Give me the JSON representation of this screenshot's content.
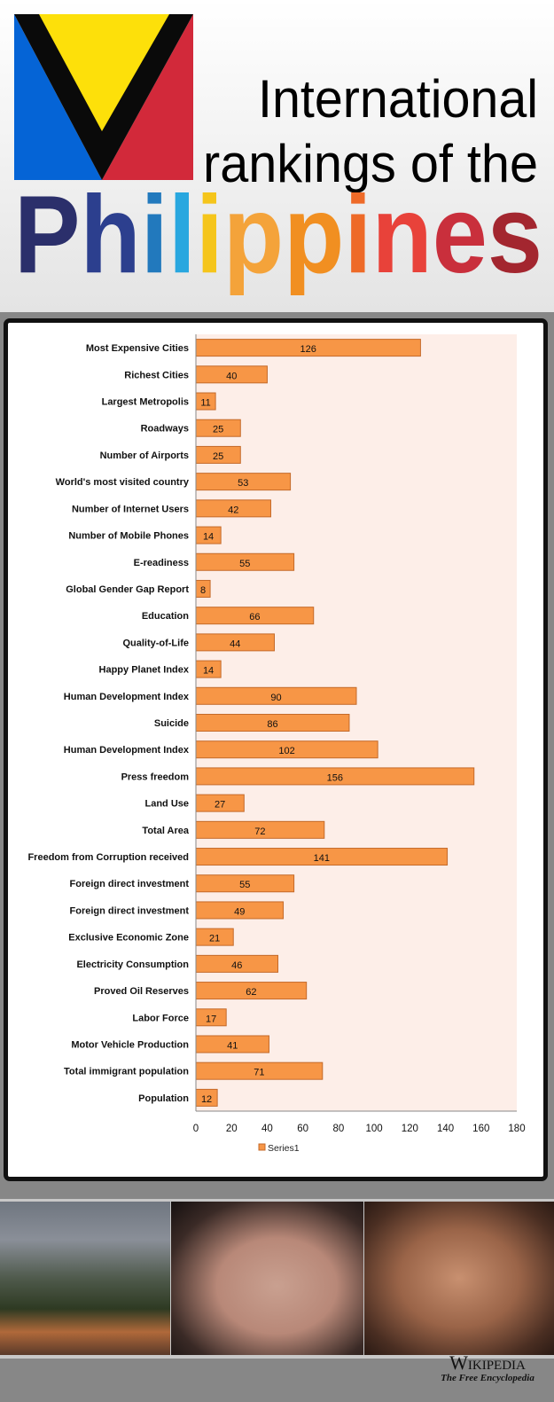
{
  "header": {
    "title_line1": "International",
    "title_line2": "rankings of the",
    "brand_word": "Philippines",
    "brand_letter_colors": [
      "#2b2f6b",
      "#2c3f8e",
      "#2279bd",
      "#29a7df",
      "#f5c51b",
      "#f4a33a",
      "#f18f21",
      "#ee6a28",
      "#e8423a",
      "#c92f3c",
      "#a3262f"
    ],
    "logo_colors": {
      "blue": "#0564d6",
      "yellow": "#fde00a",
      "red": "#d2293a",
      "black": "#0a0a0a"
    }
  },
  "chart_data": {
    "type": "bar",
    "orientation": "horizontal",
    "categories": [
      "Most Expensive Cities",
      "Richest Cities",
      "Largest Metropolis",
      "Roadways",
      "Number of Airports",
      "World's most visited country",
      "Number of Internet Users",
      "Number of Mobile Phones",
      "E-readiness",
      "Global Gender Gap Report",
      "Education",
      "Quality-of-Life",
      "Happy Planet Index",
      "Human Development Index",
      "Suicide",
      "Human Development Index",
      "Press freedom",
      "Land Use",
      "Total Area",
      "Freedom from Corruption received",
      "Foreign direct investment",
      "Foreign direct investment",
      "Exclusive Economic Zone",
      "Electricity Consumption",
      "Proved Oil Reserves",
      "Labor Force",
      "Motor Vehicle Production",
      "Total immigrant population",
      "Population"
    ],
    "series": [
      {
        "name": "Series1",
        "values": [
          126,
          40,
          11,
          25,
          25,
          53,
          42,
          14,
          55,
          8,
          66,
          44,
          14,
          90,
          86,
          102,
          156,
          27,
          72,
          141,
          55,
          49,
          21,
          46,
          62,
          17,
          41,
          71,
          12
        ]
      }
    ],
    "xlim": [
      0,
      180
    ],
    "xticks": [
      "0",
      "20",
      "40",
      "60",
      "80",
      "100",
      "120",
      "140",
      "160",
      "180"
    ],
    "data_labels": true,
    "grid": false,
    "legend_position": "bottom",
    "colors": {
      "bar": "#f79646",
      "bar_border": "#c46a2a",
      "plot_bg": "#fdeee8"
    }
  },
  "footer": {
    "wikipedia_name": "Wikipedia",
    "wikipedia_tagline": "The Free Encyclopedia"
  }
}
